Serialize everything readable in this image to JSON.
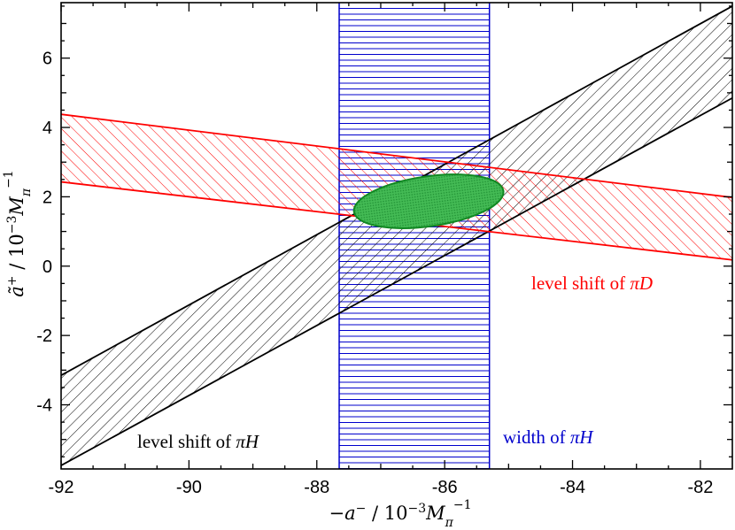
{
  "chart_data": {
    "type": "area",
    "xlim": [
      -92,
      -81.5
    ],
    "ylim": [
      -5.85,
      7.6
    ],
    "x_ticks": [
      -92,
      -90,
      -88,
      -86,
      -84,
      -82
    ],
    "y_ticks": [
      -4,
      -2,
      0,
      2,
      4,
      6
    ],
    "x_tick_labels": [
      "-92",
      "-90",
      "-88",
      "-86",
      "-84",
      "-82"
    ],
    "y_tick_labels": [
      "-4",
      "-2",
      "0",
      "2",
      "4",
      "6"
    ],
    "grid": false,
    "xlabel": "−a⁻ / 10⁻³M_π⁻¹",
    "ylabel": "ã⁺ / 10⁻³M_π⁻¹",
    "xlabel_parts": {
      "sign": "−",
      "var": "a",
      "var_sup": "−",
      "slash": " / ",
      "ten": "10",
      "exp": "−3",
      "M": "M",
      "sub": "π",
      "sup": "−1"
    },
    "ylabel_parts": {
      "var": "ã",
      "var_sup": "+",
      "slash": " / ",
      "ten": "10",
      "exp": "−3",
      "M": "M",
      "sub": "π",
      "sup": "−1"
    },
    "bands": [
      {
        "name": "level shift of πD",
        "label_prefix": "level shift of ",
        "label_sym": "πD",
        "color": "#ff0000",
        "hatch": "diagonal",
        "upper": {
          "x": [
            -92,
            -81.5
          ],
          "y": [
            4.38,
            1.98
          ]
        },
        "lower": {
          "x": [
            -92,
            -81.5
          ],
          "y": [
            2.43,
            0.18
          ]
        }
      },
      {
        "name": "level shift of πH",
        "label_prefix": "level shift of ",
        "label_sym": "πH",
        "color": "#000000",
        "hatch": "antidiagonal",
        "upper": {
          "x": [
            -92,
            -81.5
          ],
          "y": [
            -3.15,
            7.5
          ]
        },
        "lower": {
          "x": [
            -92,
            -81.5
          ],
          "y": [
            -5.75,
            4.85
          ]
        }
      },
      {
        "name": "width of πH",
        "label_prefix": "width of ",
        "label_sym": "πH",
        "color": "#0000cc",
        "hatch": "horizontal",
        "x_range": [
          -87.65,
          -85.3
        ]
      }
    ],
    "ellipse": {
      "center": [
        -86.25,
        1.87
      ],
      "semi_axis_x": 1.18,
      "semi_axis_y": 0.72,
      "rotation_deg": -8,
      "fill": "#22aa44",
      "stroke": "#118822"
    }
  }
}
